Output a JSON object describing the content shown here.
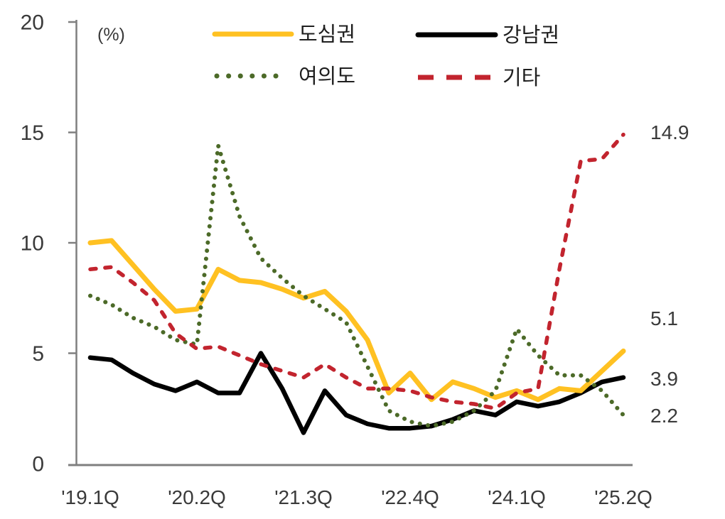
{
  "chart_data": {
    "type": "line",
    "title": "",
    "unit_label": "(%)",
    "xlabel": "",
    "ylabel": "(%)",
    "ylim": [
      0,
      20
    ],
    "y_tick_labels": [
      "0",
      "5",
      "10",
      "15",
      "20"
    ],
    "x_tick_labels": [
      "'19.1Q",
      "'20.2Q",
      "'21.3Q",
      "'22.4Q",
      "'24.1Q",
      "'25.2Q"
    ],
    "grid": false,
    "legend_position": "top",
    "categories": [
      "'19.1Q",
      "'19.2Q",
      "'19.3Q",
      "'19.4Q",
      "'20.1Q",
      "'20.2Q",
      "'20.3Q",
      "'20.4Q",
      "'21.1Q",
      "'21.2Q",
      "'21.3Q",
      "'21.4Q",
      "'22.1Q",
      "'22.2Q",
      "'22.3Q",
      "'22.4Q",
      "'23.1Q",
      "'23.2Q",
      "'23.3Q",
      "'23.4Q",
      "'24.1Q",
      "'24.2Q",
      "'24.3Q",
      "'24.4Q",
      "'25.1Q",
      "'25.2Q"
    ],
    "series": [
      {
        "name": "도심권",
        "color": "#FFC122",
        "line_style": "solid",
        "values": [
          10.0,
          10.1,
          9.0,
          7.9,
          6.9,
          7.0,
          8.8,
          8.3,
          8.2,
          7.9,
          7.5,
          7.8,
          6.9,
          5.6,
          3.2,
          4.1,
          2.9,
          3.7,
          3.4,
          3.0,
          3.3,
          2.9,
          3.4,
          3.3,
          4.2,
          5.1
        ]
      },
      {
        "name": "강남권",
        "color": "#000000",
        "line_style": "solid",
        "values": [
          4.8,
          4.7,
          4.1,
          3.6,
          3.3,
          3.7,
          3.2,
          3.2,
          5.0,
          3.4,
          1.4,
          3.3,
          2.2,
          1.8,
          1.6,
          1.6,
          1.7,
          2.0,
          2.4,
          2.2,
          2.8,
          2.6,
          2.8,
          3.2,
          3.7,
          3.9
        ]
      },
      {
        "name": "여의도",
        "color": "#4C6A28",
        "line_style": "dotted",
        "values": [
          7.6,
          7.2,
          6.6,
          6.2,
          5.6,
          5.4,
          14.4,
          11.2,
          9.3,
          8.4,
          7.6,
          7.0,
          6.4,
          4.4,
          2.4,
          1.9,
          1.7,
          1.9,
          2.4,
          3.3,
          6.1,
          4.9,
          4.0,
          4.0,
          3.3,
          2.2
        ]
      },
      {
        "name": "기타",
        "color": "#C2242E",
        "line_style": "dashed",
        "values": [
          8.8,
          8.9,
          8.2,
          7.4,
          5.9,
          5.2,
          5.3,
          4.9,
          4.5,
          4.2,
          3.9,
          4.5,
          3.9,
          3.4,
          3.4,
          3.3,
          3.0,
          2.8,
          2.7,
          2.5,
          3.2,
          3.4,
          8.8,
          13.7,
          13.8,
          14.9
        ]
      }
    ],
    "end_labels": [
      {
        "series": "기타",
        "text": "14.9"
      },
      {
        "series": "도심권",
        "text": "5.1"
      },
      {
        "series": "강남권",
        "text": "3.9"
      },
      {
        "series": "여의도",
        "text": "2.2"
      }
    ]
  }
}
